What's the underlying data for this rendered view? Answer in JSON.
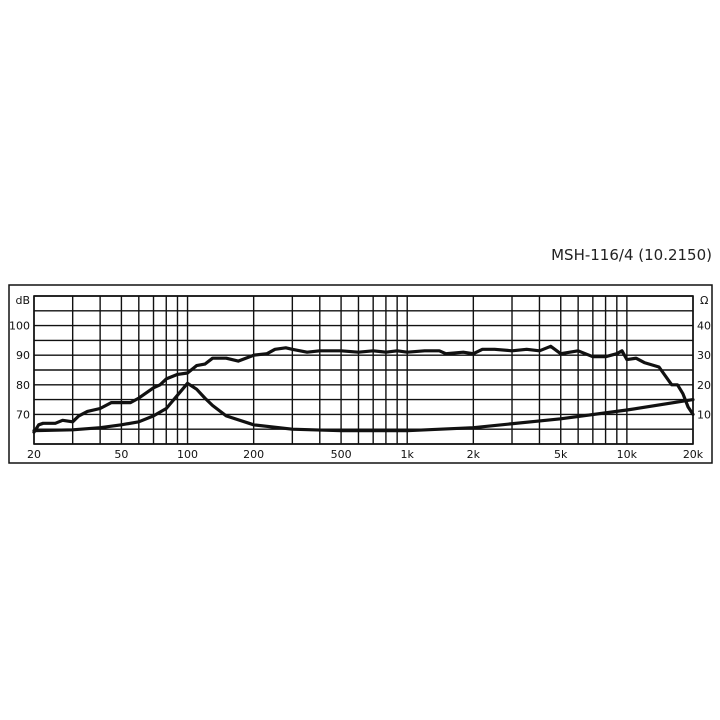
{
  "chart_data": {
    "type": "line",
    "title": "MSH-116/4 (10.2150)",
    "xscale": "log",
    "xlim": [
      20,
      20000
    ],
    "x_tick_labels": [
      {
        "v": 20,
        "t": "20"
      },
      {
        "v": 50,
        "t": "50"
      },
      {
        "v": 100,
        "t": "100"
      },
      {
        "v": 200,
        "t": "200"
      },
      {
        "v": 500,
        "t": "500"
      },
      {
        "v": 1000,
        "t": "1k"
      },
      {
        "v": 2000,
        "t": "2k"
      },
      {
        "v": 5000,
        "t": "5k"
      },
      {
        "v": 10000,
        "t": "10k"
      },
      {
        "v": 20000,
        "t": "20k"
      }
    ],
    "y_left": {
      "label": "dB",
      "ylim": [
        60,
        110
      ],
      "ticks": [
        70,
        80,
        90,
        100
      ]
    },
    "y_right": {
      "label": "Ω",
      "ylim": [
        0,
        50
      ],
      "ticks": [
        10,
        20,
        30,
        40
      ]
    },
    "grid": true,
    "series": [
      {
        "axis": "left",
        "x": [
          20,
          21,
          22,
          25,
          27,
          30,
          32,
          35,
          40,
          45,
          50,
          55,
          60,
          70,
          75,
          80,
          90,
          100,
          110,
          120,
          130,
          150,
          170,
          200,
          230,
          250,
          280,
          300,
          350,
          400,
          500,
          600,
          700,
          800,
          900,
          1000,
          1200,
          1400,
          1500,
          1800,
          2000,
          2200,
          2500,
          3000,
          3500,
          4000,
          4500,
          5000,
          6000,
          7000,
          8000,
          9000,
          9500,
          10000,
          11000,
          12000,
          14000,
          16000,
          17000,
          18000,
          19000,
          20000
        ],
        "y": [
          64,
          66.5,
          67,
          67,
          68,
          67.5,
          69.5,
          71,
          72,
          74,
          74,
          74,
          75.5,
          79,
          80,
          82,
          83.5,
          84,
          86.5,
          87,
          89,
          89,
          88,
          90,
          90.5,
          92,
          92.5,
          92,
          91,
          91.5,
          91.5,
          91,
          91.5,
          91,
          91.5,
          91,
          91.5,
          91.5,
          90.5,
          91,
          90.5,
          92,
          92,
          91.5,
          92,
          91.5,
          93,
          90.5,
          91.5,
          89.5,
          89.5,
          90.5,
          91.5,
          88.5,
          89,
          87.5,
          86,
          80,
          80,
          77,
          72.5,
          70
        ]
      },
      {
        "axis": "right",
        "x": [
          20,
          30,
          40,
          50,
          60,
          70,
          80,
          90,
          100,
          110,
          120,
          130,
          150,
          200,
          300,
          500,
          1000,
          2000,
          5000,
          10000,
          20000
        ],
        "y": [
          4.5,
          4.8,
          5.5,
          6.5,
          7.5,
          9.5,
          12,
          16.5,
          20.5,
          18.5,
          15.5,
          13,
          9.5,
          6.5,
          5,
          4.5,
          4.5,
          5.5,
          8.5,
          11.5,
          15
        ]
      }
    ],
    "colors": {
      "line": "#111111",
      "grid": "#111111"
    }
  }
}
